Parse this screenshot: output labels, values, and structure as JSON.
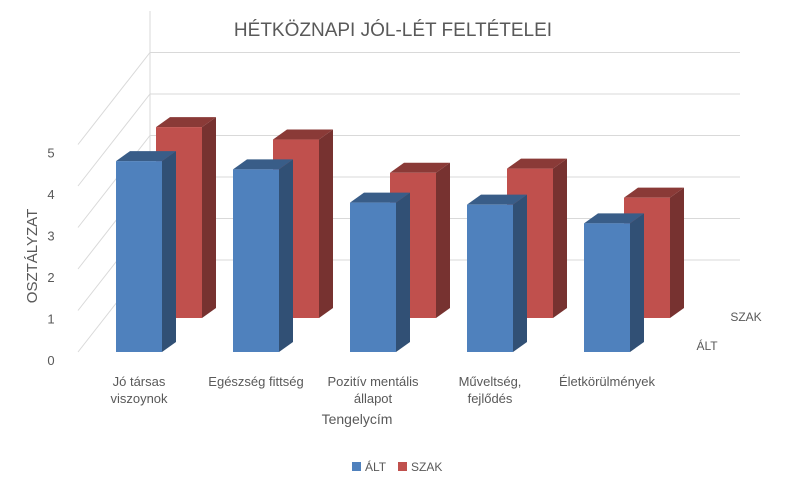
{
  "chart_data": {
    "type": "bar",
    "title": "HÉTKÖZNAPI JÓL-LÉT FELTÉTELEI",
    "xlabel": "Tengelycím",
    "ylabel": "OSZTÁLYZAT",
    "ylim": [
      0,
      5
    ],
    "yticks": [
      "0",
      "1",
      "2",
      "3",
      "4",
      "5"
    ],
    "categories": [
      [
        "Jó társas",
        "viszoynok"
      ],
      [
        "Egészség fittség"
      ],
      [
        "Pozitív mentális",
        "állapot"
      ],
      [
        "Műveltség,",
        "fejlődés"
      ],
      [
        "Életkörülmények"
      ]
    ],
    "series": [
      {
        "name": "ÁLT",
        "values": [
          4.6,
          4.4,
          3.6,
          3.55,
          3.1
        ],
        "color": "#4f81bd"
      },
      {
        "name": "SZAK",
        "values": [
          4.6,
          4.3,
          3.5,
          3.6,
          2.9
        ],
        "color": "#c0504d"
      }
    ],
    "legend": {
      "position": "bottom"
    },
    "grid": true,
    "projection": "3d-column"
  }
}
